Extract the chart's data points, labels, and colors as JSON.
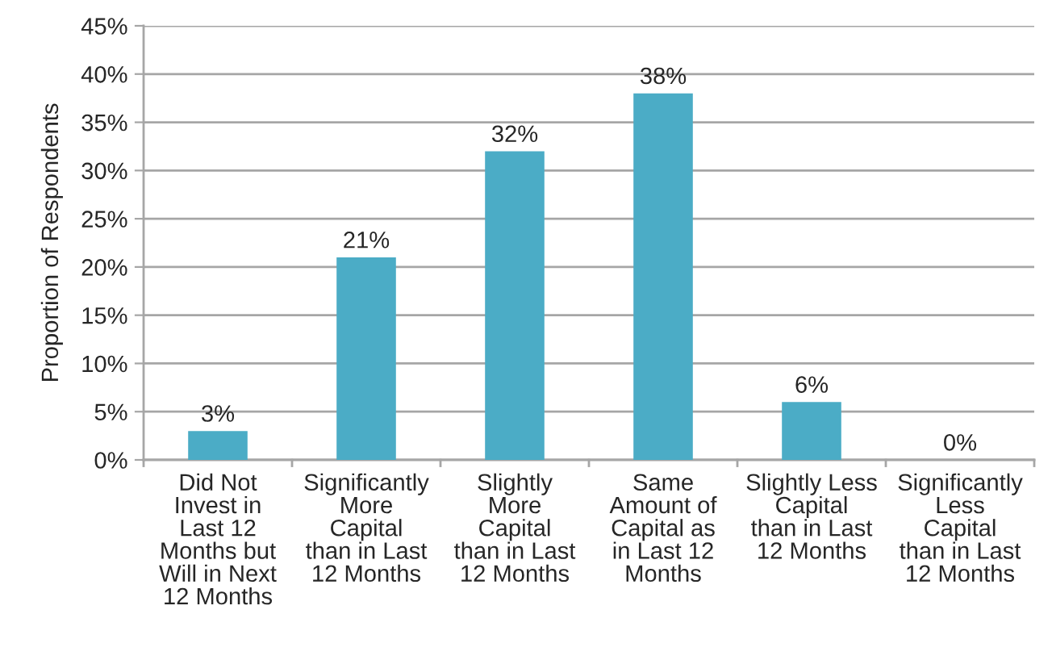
{
  "chart_data": {
    "type": "bar",
    "ylabel": "Proportion of Respondents",
    "categories": [
      "Did Not\nInvest in\nLast 12\nMonths but\nWill in Next\n12 Months",
      "Significantly\nMore\nCapital\nthan in Last\n12 Months",
      "Slightly\nMore\nCapital\nthan in Last\n12 Months",
      "Same\nAmount of\nCapital as\nin Last 12\nMonths",
      "Slightly Less\nCapital\nthan in Last\n12 Months",
      "Significantly\nLess\nCapital\nthan in Last\n12 Months"
    ],
    "values": [
      3,
      21,
      32,
      38,
      6,
      0
    ],
    "color": "#4bacc6",
    "value_labels": [
      "3%",
      "21%",
      "32%",
      "38%",
      "6%",
      "0%"
    ],
    "ylim": [
      0,
      45
    ],
    "yticks": [
      {
        "value": 0,
        "label": "0%"
      },
      {
        "value": 5,
        "label": "5%"
      },
      {
        "value": 10,
        "label": "10%"
      },
      {
        "value": 15,
        "label": "15%"
      },
      {
        "value": 20,
        "label": "20%"
      },
      {
        "value": 25,
        "label": "25%"
      },
      {
        "value": 30,
        "label": "30%"
      },
      {
        "value": 35,
        "label": "35%"
      },
      {
        "value": 40,
        "label": "40%"
      },
      {
        "value": 45,
        "label": "45%"
      }
    ],
    "grid": "y",
    "legend": false
  }
}
